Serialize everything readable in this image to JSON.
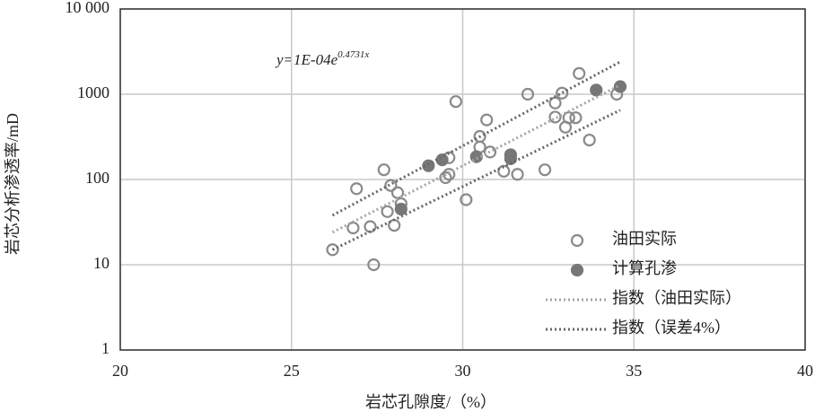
{
  "chart_data": {
    "type": "scatter",
    "x_label": "岩芯孔隙度/（%）",
    "y_label": "岩芯分析渗透率/mD",
    "equation": {
      "base": "y=1E-04e",
      "exponent": "0.4731x"
    },
    "xlim": [
      20,
      40
    ],
    "xticks": [
      20,
      25,
      30,
      35,
      40
    ],
    "ylim": [
      1,
      10000
    ],
    "yticks": [
      1,
      10,
      100,
      1000,
      {
        "value": 10000,
        "label": "10 000"
      }
    ],
    "y_log": true,
    "grid": true,
    "series": [
      {
        "name": "油田实际",
        "kind": "hollow",
        "color": "#8a8a8a",
        "x": [
          26.2,
          26.8,
          26.9,
          27.3,
          27.4,
          27.7,
          27.8,
          27.9,
          28.0,
          28.1,
          28.2,
          29.5,
          29.6,
          29.6,
          29.8,
          30.1,
          30.5,
          30.5,
          30.7,
          30.8,
          31.2,
          31.6,
          31.9,
          32.4,
          32.7,
          32.7,
          32.9,
          33.0,
          33.1,
          33.3,
          33.4,
          33.7,
          34.5
        ],
        "values": [
          15,
          27,
          78,
          28,
          10,
          130,
          42,
          85,
          29,
          70,
          52,
          105,
          115,
          180,
          820,
          58,
          320,
          240,
          500,
          210,
          125,
          115,
          1000,
          130,
          540,
          790,
          1030,
          410,
          530,
          530,
          1750,
          290,
          1000
        ]
      },
      {
        "name": "计算孔渗",
        "kind": "filled",
        "color": "#777777",
        "x": [
          28.2,
          29.0,
          29.4,
          30.4,
          31.4,
          31.4,
          33.9,
          34.6
        ],
        "values": [
          45,
          145,
          170,
          185,
          175,
          195,
          1120,
          1230
        ]
      },
      {
        "name": "指数（油田实际）",
        "kind": "dotted",
        "color": "#a6a6a6",
        "x": [
          26.2,
          34.6
        ],
        "values": [
          24,
          1280
        ]
      },
      {
        "name": "指数（误差4%）",
        "kind": "dotted",
        "color": "#666666",
        "x": [
          26.2,
          34.6
        ],
        "values": [
          38,
          2400
        ]
      },
      {
        "kind": "dotted",
        "color": "#666666",
        "x": [
          26.2,
          34.6
        ],
        "values": [
          15,
          650
        ]
      }
    ]
  }
}
